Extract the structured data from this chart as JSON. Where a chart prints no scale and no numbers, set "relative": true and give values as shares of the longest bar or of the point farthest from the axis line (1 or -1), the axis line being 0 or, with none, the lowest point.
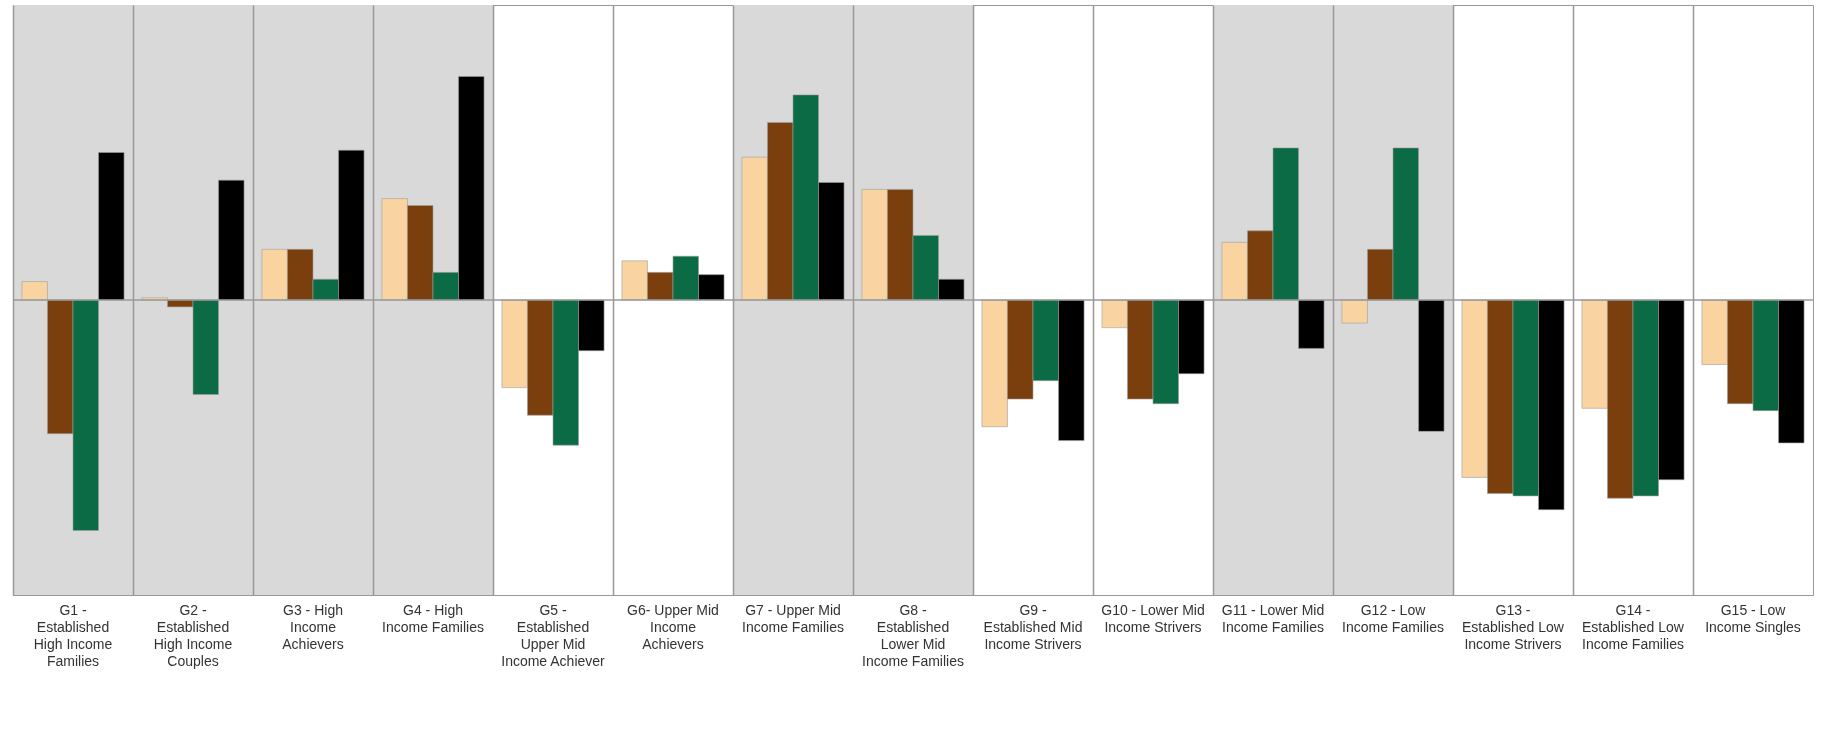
{
  "chart_data": {
    "type": "bar",
    "relative": true,
    "grid": "x",
    "categories": [
      "G1 - Established High Income Families",
      "G2 - Established High Income Couples",
      "G3 - High Income Achievers",
      "G4 - High Income Families",
      "G5 - Established Upper Mid Income Achiever",
      "G6- Upper Mid Income Achievers",
      "G7 - Upper Mid Income Families",
      "G8 - Established Lower Mid Income Families",
      "G9 - Established Mid Income Strivers",
      "G10 - Lower Mid Income Strivers",
      "G11 - Lower Mid Income Families",
      "G12 - Low Income Families",
      "G13 - Established Low Income Strivers",
      "G14 - Established Low Income Families",
      "G15 - Low Income Singles"
    ],
    "series": [
      {
        "color": "#f9d3a0",
        "values": [
          0.08,
          0.01,
          0.22,
          0.44,
          -0.38,
          0.17,
          0.62,
          0.48,
          -0.55,
          -0.12,
          0.25,
          -0.1,
          -0.77,
          -0.47,
          -0.28
        ]
      },
      {
        "color": "#7b3f0e",
        "values": [
          -0.58,
          -0.03,
          0.22,
          0.41,
          -0.5,
          0.12,
          0.77,
          0.48,
          -0.43,
          -0.43,
          0.3,
          0.22,
          -0.84,
          -0.86,
          -0.45
        ]
      },
      {
        "color": "#0b6b45",
        "values": [
          -1,
          -0.41,
          0.09,
          0.12,
          -0.63,
          0.19,
          0.89,
          0.28,
          -0.35,
          -0.45,
          0.66,
          0.66,
          -0.85,
          -0.85,
          -0.48
        ]
      },
      {
        "color": "#000000",
        "values": [
          0.64,
          0.52,
          0.65,
          0.97,
          -0.22,
          0.11,
          0.51,
          0.09,
          -0.61,
          -0.32,
          -0.21,
          -0.57,
          -0.91,
          -0.78,
          -0.62
        ]
      }
    ],
    "bands": [
      {
        "axis": "x",
        "from": "G1 - Established High Income Families",
        "to": "G4 - High Income Families",
        "color": "#d9d9d9"
      },
      {
        "axis": "x",
        "from": "G7 - Upper Mid Income Families",
        "to": "G8 - Established Lower Mid Income Families",
        "color": "#d9d9d9"
      },
      {
        "axis": "x",
        "from": "G11 - Lower Mid Income Families",
        "to": "G12 - Low Income Families",
        "color": "#d9d9d9"
      }
    ]
  }
}
